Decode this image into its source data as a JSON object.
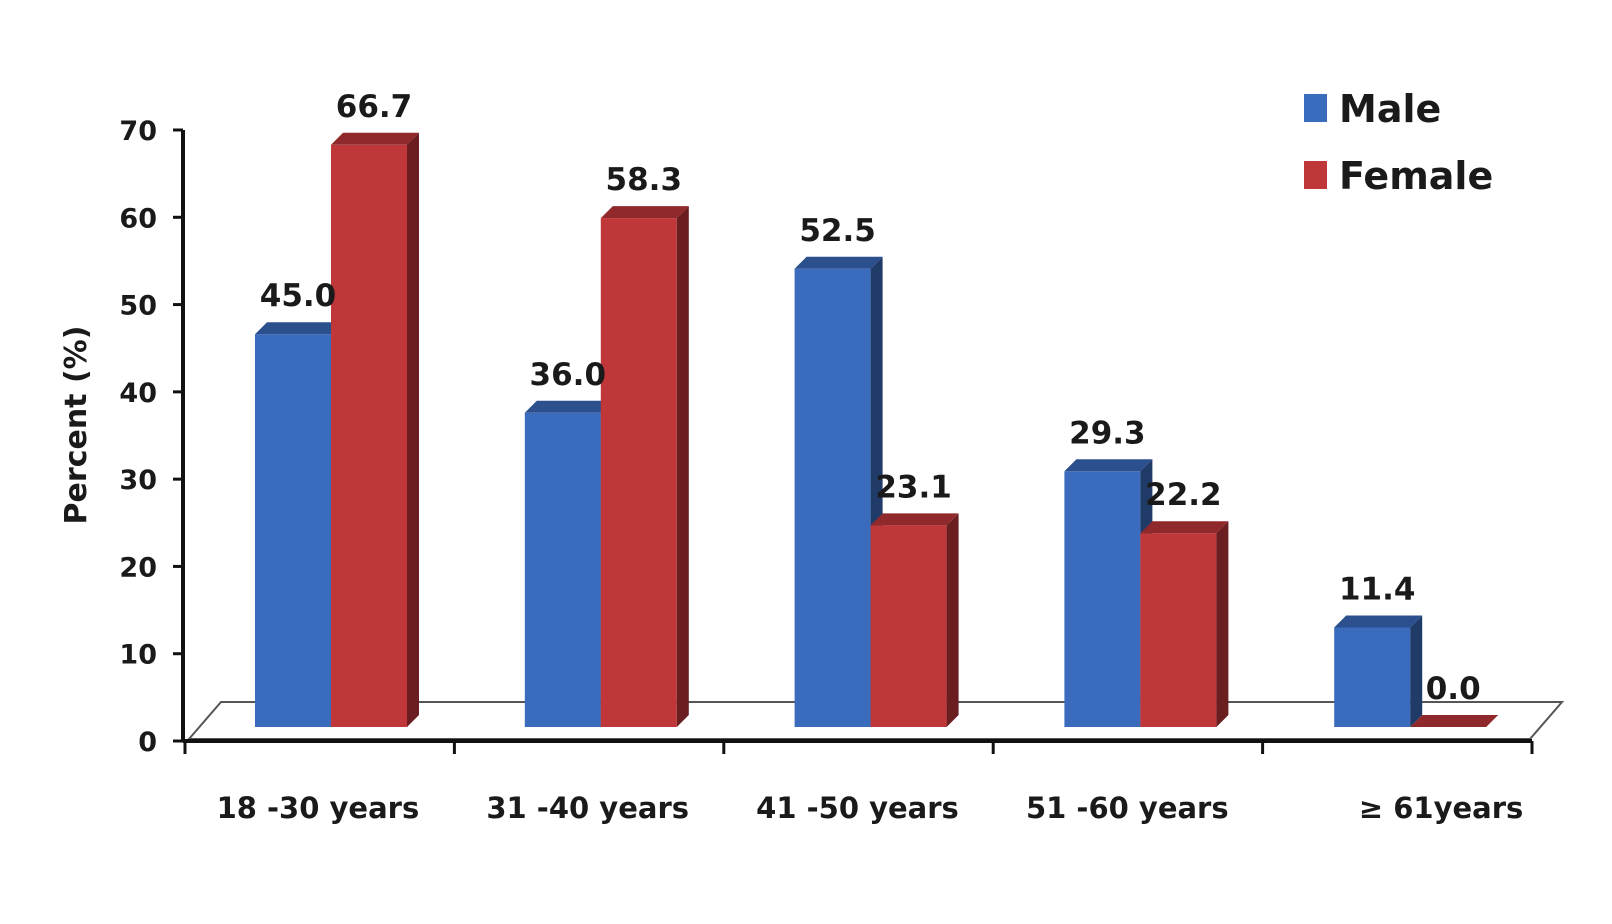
{
  "chart_data": {
    "type": "bar",
    "title": "",
    "xlabel": "",
    "ylabel": "Percent (%)",
    "ylim": [
      0,
      70
    ],
    "yticks": [
      0,
      10,
      20,
      30,
      40,
      50,
      60,
      70
    ],
    "categories": [
      "18 -30 years",
      "31 -40 years",
      "41 -50 years",
      "51 -60 years",
      "≥ 61years"
    ],
    "series": [
      {
        "name": "Male",
        "color": "#3a6bbd",
        "values": [
          45.0,
          36.0,
          52.5,
          29.3,
          11.4
        ],
        "labels": [
          "45.0",
          "36.0",
          "52.5",
          "29.3",
          "11.4"
        ]
      },
      {
        "name": "Female",
        "color": "#c0373a",
        "values": [
          66.7,
          58.3,
          23.1,
          22.2,
          0.0
        ],
        "labels": [
          "66.7",
          "58.3",
          "23.1",
          "22.2",
          "0.0"
        ]
      }
    ],
    "legend": "top-right",
    "grid": false,
    "style": "3d-clustered-column"
  }
}
